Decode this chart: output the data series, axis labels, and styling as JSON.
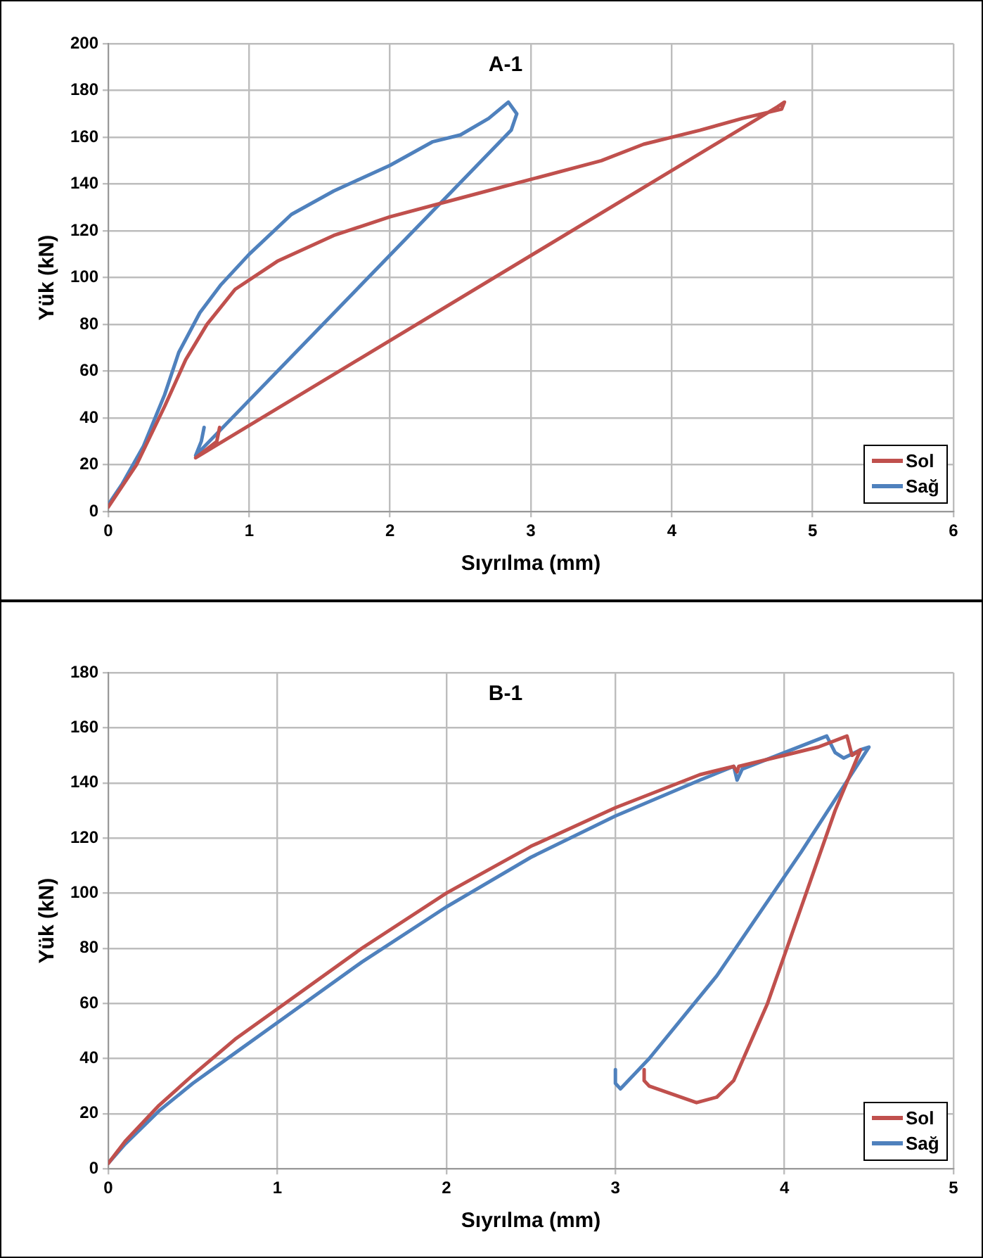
{
  "chart_data": [
    {
      "type": "line",
      "title": "A-1",
      "xlabel": "Sıyrılma (mm)",
      "ylabel": "Yük (kN)",
      "xlim": [
        0,
        6
      ],
      "xticks": [
        0,
        1,
        2,
        3,
        4,
        5,
        6
      ],
      "ylim": [
        0,
        200
      ],
      "yticks": [
        0,
        20,
        40,
        60,
        80,
        100,
        120,
        140,
        160,
        180,
        200
      ],
      "grid": true,
      "legend": "bottom right",
      "marker": "none",
      "line_style": "solid",
      "series": [
        {
          "name": "Sol",
          "color": "#c0504d",
          "x": [
            0,
            0.2,
            0.4,
            0.55,
            0.7,
            0.9,
            1.2,
            1.6,
            2,
            2.5,
            3,
            3.5,
            3.8,
            4.2,
            4.5,
            4.78,
            4.8,
            4.75,
            0.62,
            0.77,
            0.79
          ],
          "values": [
            2,
            20,
            45,
            65,
            80,
            95,
            107,
            118,
            126,
            134,
            142,
            150,
            157,
            163,
            168,
            172,
            175,
            173,
            23,
            30,
            36
          ]
        },
        {
          "name": "Sağ",
          "color": "#4f81bd",
          "x": [
            0,
            0.1,
            0.25,
            0.4,
            0.5,
            0.65,
            0.8,
            1.0,
            1.3,
            1.6,
            2.0,
            2.3,
            2.5,
            2.7,
            2.84,
            2.9,
            2.86,
            0.62,
            0.66,
            0.68
          ],
          "values": [
            3,
            12,
            28,
            50,
            68,
            85,
            97,
            110,
            127,
            137,
            148,
            158,
            161,
            168,
            175,
            170,
            163,
            24,
            30,
            36
          ]
        }
      ]
    },
    {
      "type": "line",
      "title": "B-1",
      "xlabel": "Sıyrılma (mm)",
      "ylabel": "Yük (kN)",
      "xlim": [
        0,
        5
      ],
      "xticks": [
        0,
        1,
        2,
        3,
        4,
        5
      ],
      "ylim": [
        0,
        180
      ],
      "yticks": [
        0,
        20,
        40,
        60,
        80,
        100,
        120,
        140,
        160,
        180
      ],
      "grid": true,
      "legend": "bottom right",
      "marker": "none",
      "line_style": "solid",
      "series": [
        {
          "name": "Sol",
          "color": "#c0504d",
          "x": [
            0,
            0.1,
            0.3,
            0.5,
            0.75,
            1,
            1.5,
            2,
            2.5,
            3,
            3.5,
            3.7,
            3.72,
            3.73,
            4,
            4.2,
            4.37,
            4.4,
            4.45,
            4.3,
            4.1,
            3.9,
            3.7,
            3.6,
            3.48,
            3.2,
            3.17,
            3.17
          ],
          "values": [
            2,
            10,
            23,
            34,
            47,
            58,
            80,
            100,
            117,
            131,
            143,
            146,
            144,
            146,
            150,
            153,
            157,
            150,
            152,
            130,
            95,
            60,
            32,
            26,
            24,
            30,
            32,
            36
          ]
        },
        {
          "name": "Sağ",
          "color": "#4f81bd",
          "x": [
            0,
            0.1,
            0.3,
            0.5,
            0.75,
            1,
            1.5,
            2,
            2.5,
            3,
            3.5,
            3.7,
            3.72,
            3.75,
            4,
            4.25,
            4.3,
            4.35,
            4.45,
            4.5,
            4.1,
            3.6,
            3.2,
            3.03,
            3.0,
            3.0
          ],
          "values": [
            2,
            9,
            21,
            31,
            42,
            53,
            75,
            95,
            113,
            128,
            141,
            146,
            141,
            145,
            151,
            157,
            151,
            149,
            152,
            153,
            115,
            70,
            40,
            29,
            31,
            36
          ]
        }
      ]
    }
  ]
}
